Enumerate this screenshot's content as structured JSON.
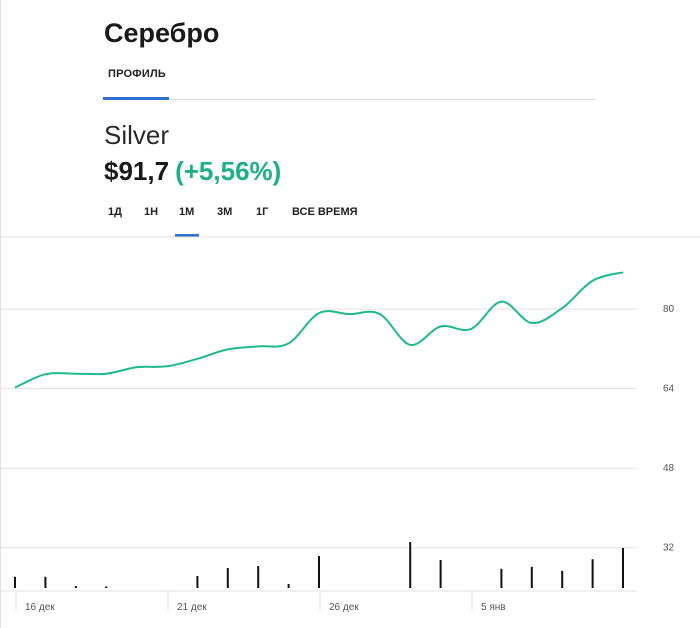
{
  "header": {
    "title": "Серебро"
  },
  "tabs": [
    {
      "label": "ПРОФИЛЬ",
      "active": true
    }
  ],
  "asset": {
    "name": "Silver",
    "price": "$91,7",
    "change": "(+5,56%)"
  },
  "periods": [
    {
      "label": "1Д",
      "active": false
    },
    {
      "label": "1Н",
      "active": false
    },
    {
      "label": "1М",
      "active": true
    },
    {
      "label": "3М",
      "active": false
    },
    {
      "label": "1Г",
      "active": false
    },
    {
      "label": "ВСЕ ВРЕМЯ",
      "active": false
    }
  ],
  "colors": {
    "accent": "#2f6fd8",
    "line": "#1fb98e",
    "change": "#1fb089",
    "volume": "#111111"
  },
  "chart_data": {
    "type": "line",
    "ylim": [
      23.5,
      94.5
    ],
    "yticks": [
      32,
      48,
      64,
      80
    ],
    "xtick_labels": [
      "16 дек",
      "21 дек",
      "26 дек",
      "5 янв"
    ],
    "xtick_index": [
      0,
      5,
      10,
      15
    ],
    "grid": true,
    "x": [
      "",
      "",
      "",
      "",
      "",
      "",
      "",
      "",
      "",
      "",
      "",
      "",
      "",
      "",
      "",
      "",
      "",
      "",
      "",
      "",
      ""
    ],
    "series": [
      {
        "values": [
          64.2,
          66.9,
          67.0,
          67.0,
          68.3,
          68.5,
          70.0,
          71.9,
          72.5,
          73.1,
          79.2,
          79.0,
          79.0,
          72.8,
          76.5,
          76.0,
          81.5,
          77.2,
          80.2,
          85.7,
          87.4
        ]
      }
    ],
    "volume": [
      0.28,
      0.28,
      0.05,
      0.04,
      0,
      0,
      0.3,
      0.5,
      0.55,
      0.1,
      0.8,
      0,
      0,
      1.15,
      0.7,
      0,
      0.48,
      0.53,
      0.43,
      0.72,
      1.0
    ]
  }
}
